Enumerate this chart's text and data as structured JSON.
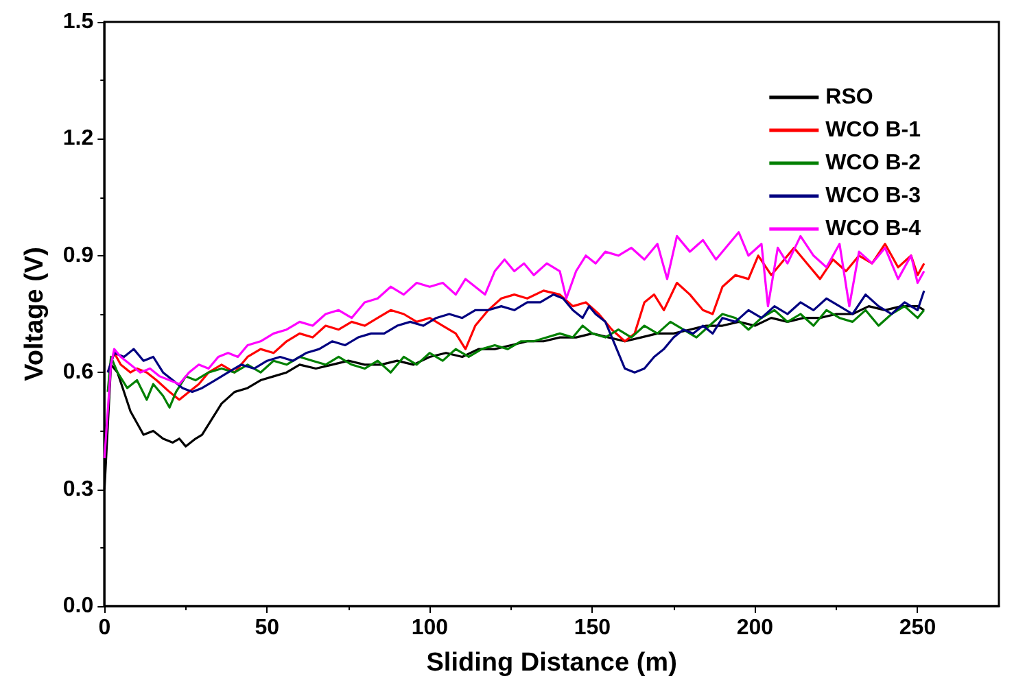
{
  "chart_data": {
    "type": "line",
    "xlabel": "Sliding Distance (m)",
    "ylabel": "Voltage (V)",
    "xlim": [
      0,
      275
    ],
    "xticks": [
      0,
      50,
      100,
      150,
      200,
      250
    ],
    "ylim": [
      0,
      1.5
    ],
    "yticks": [
      {
        "value": 0,
        "label": "0.0"
      },
      {
        "value": 0.3,
        "label": "0.3"
      },
      {
        "value": 0.6,
        "label": "0.6"
      },
      {
        "value": 0.9,
        "label": "0.9"
      },
      {
        "value": 1.2,
        "label": "1.2"
      },
      {
        "value": 1.5,
        "label": "1.5"
      }
    ],
    "grid": false,
    "legend": "top right",
    "marker": "none",
    "line_style": "solid",
    "series": [
      {
        "name": "RSO",
        "color": "#000000",
        "x": [
          0,
          2,
          4,
          6,
          8,
          10,
          12,
          15,
          18,
          21,
          23,
          25,
          28,
          30,
          33,
          36,
          40,
          44,
          48,
          52,
          56,
          60,
          65,
          70,
          75,
          80,
          85,
          90,
          95,
          100,
          105,
          110,
          115,
          120,
          125,
          130,
          135,
          140,
          145,
          150,
          155,
          160,
          165,
          170,
          175,
          180,
          185,
          190,
          195,
          200,
          205,
          210,
          215,
          220,
          225,
          230,
          235,
          240,
          245,
          250,
          252
        ],
        "values": [
          0.3,
          0.62,
          0.6,
          0.55,
          0.5,
          0.47,
          0.44,
          0.45,
          0.43,
          0.42,
          0.43,
          0.41,
          0.43,
          0.44,
          0.48,
          0.52,
          0.55,
          0.56,
          0.58,
          0.59,
          0.6,
          0.62,
          0.61,
          0.62,
          0.63,
          0.62,
          0.62,
          0.63,
          0.62,
          0.64,
          0.65,
          0.64,
          0.66,
          0.66,
          0.67,
          0.68,
          0.68,
          0.69,
          0.69,
          0.7,
          0.69,
          0.68,
          0.69,
          0.7,
          0.7,
          0.71,
          0.72,
          0.72,
          0.73,
          0.72,
          0.74,
          0.73,
          0.74,
          0.74,
          0.75,
          0.75,
          0.77,
          0.76,
          0.77,
          0.77,
          0.76
        ]
      },
      {
        "name": "WCO B-1",
        "color": "#ff0000",
        "x": [
          1,
          3,
          5,
          8,
          10,
          13,
          16,
          20,
          23,
          26,
          29,
          32,
          36,
          40,
          44,
          48,
          52,
          56,
          60,
          64,
          68,
          72,
          76,
          80,
          84,
          88,
          92,
          96,
          100,
          104,
          108,
          111,
          114,
          118,
          122,
          126,
          130,
          135,
          140,
          144,
          148,
          152,
          156,
          160,
          163,
          166,
          169,
          172,
          176,
          180,
          184,
          187,
          190,
          194,
          198,
          201,
          205,
          208,
          212,
          216,
          220,
          224,
          228,
          232,
          236,
          240,
          244,
          248,
          250,
          252
        ],
        "values": [
          0.6,
          0.65,
          0.62,
          0.6,
          0.61,
          0.6,
          0.58,
          0.55,
          0.53,
          0.55,
          0.57,
          0.6,
          0.62,
          0.6,
          0.64,
          0.66,
          0.65,
          0.68,
          0.7,
          0.69,
          0.72,
          0.71,
          0.73,
          0.72,
          0.74,
          0.76,
          0.75,
          0.73,
          0.74,
          0.72,
          0.7,
          0.66,
          0.72,
          0.76,
          0.79,
          0.8,
          0.79,
          0.81,
          0.8,
          0.77,
          0.78,
          0.75,
          0.71,
          0.68,
          0.7,
          0.78,
          0.8,
          0.76,
          0.83,
          0.8,
          0.76,
          0.75,
          0.82,
          0.85,
          0.84,
          0.9,
          0.85,
          0.88,
          0.92,
          0.88,
          0.84,
          0.89,
          0.86,
          0.9,
          0.88,
          0.93,
          0.87,
          0.9,
          0.85,
          0.88
        ]
      },
      {
        "name": "WCO B-2",
        "color": "#008000",
        "x": [
          1,
          2,
          4,
          7,
          10,
          13,
          15,
          18,
          20,
          22,
          25,
          28,
          32,
          36,
          40,
          44,
          48,
          52,
          56,
          60,
          64,
          68,
          72,
          76,
          80,
          84,
          88,
          92,
          96,
          100,
          104,
          108,
          112,
          116,
          120,
          124,
          128,
          132,
          136,
          140,
          144,
          147,
          150,
          154,
          158,
          162,
          166,
          170,
          174,
          178,
          182,
          186,
          190,
          194,
          198,
          202,
          206,
          210,
          214,
          218,
          222,
          226,
          230,
          234,
          238,
          242,
          246,
          250,
          252
        ],
        "values": [
          0.55,
          0.64,
          0.6,
          0.56,
          0.58,
          0.53,
          0.57,
          0.54,
          0.51,
          0.55,
          0.59,
          0.58,
          0.6,
          0.61,
          0.6,
          0.62,
          0.6,
          0.63,
          0.62,
          0.64,
          0.63,
          0.62,
          0.64,
          0.62,
          0.61,
          0.63,
          0.6,
          0.64,
          0.62,
          0.65,
          0.63,
          0.66,
          0.64,
          0.66,
          0.67,
          0.66,
          0.68,
          0.68,
          0.69,
          0.7,
          0.69,
          0.72,
          0.7,
          0.69,
          0.71,
          0.69,
          0.72,
          0.7,
          0.73,
          0.71,
          0.69,
          0.72,
          0.75,
          0.74,
          0.71,
          0.74,
          0.76,
          0.73,
          0.75,
          0.72,
          0.76,
          0.74,
          0.73,
          0.76,
          0.72,
          0.75,
          0.77,
          0.74,
          0.76
        ]
      },
      {
        "name": "WCO B-3",
        "color": "#000080",
        "x": [
          1,
          3,
          6,
          9,
          12,
          15,
          18,
          21,
          24,
          27,
          30,
          34,
          38,
          42,
          46,
          50,
          54,
          58,
          62,
          66,
          70,
          74,
          78,
          82,
          86,
          90,
          94,
          98,
          102,
          106,
          110,
          114,
          118,
          122,
          126,
          130,
          134,
          138,
          141,
          144,
          147,
          149,
          151,
          154,
          157,
          160,
          163,
          166,
          169,
          172,
          175,
          178,
          181,
          184,
          187,
          190,
          194,
          198,
          202,
          206,
          210,
          214,
          218,
          222,
          226,
          230,
          234,
          238,
          242,
          246,
          250,
          252
        ],
        "values": [
          0.6,
          0.65,
          0.64,
          0.66,
          0.63,
          0.64,
          0.6,
          0.58,
          0.56,
          0.55,
          0.56,
          0.58,
          0.6,
          0.62,
          0.61,
          0.63,
          0.64,
          0.63,
          0.65,
          0.66,
          0.68,
          0.67,
          0.69,
          0.7,
          0.7,
          0.72,
          0.73,
          0.72,
          0.74,
          0.75,
          0.74,
          0.76,
          0.76,
          0.77,
          0.76,
          0.78,
          0.78,
          0.8,
          0.79,
          0.76,
          0.74,
          0.77,
          0.75,
          0.73,
          0.67,
          0.61,
          0.6,
          0.61,
          0.64,
          0.66,
          0.69,
          0.71,
          0.7,
          0.72,
          0.7,
          0.74,
          0.73,
          0.76,
          0.74,
          0.77,
          0.75,
          0.78,
          0.76,
          0.79,
          0.77,
          0.75,
          0.8,
          0.77,
          0.75,
          0.78,
          0.76,
          0.81
        ]
      },
      {
        "name": "WCO B-4",
        "color": "#ff00ff",
        "x": [
          0,
          2,
          3,
          5,
          8,
          11,
          14,
          17,
          20,
          23,
          26,
          29,
          32,
          35,
          38,
          41,
          44,
          48,
          52,
          56,
          60,
          64,
          68,
          72,
          76,
          80,
          84,
          88,
          92,
          96,
          100,
          104,
          108,
          111,
          114,
          117,
          120,
          123,
          126,
          129,
          132,
          136,
          140,
          142,
          145,
          148,
          151,
          154,
          158,
          162,
          166,
          170,
          173,
          176,
          180,
          184,
          188,
          192,
          195,
          198,
          202,
          204,
          207,
          210,
          214,
          218,
          222,
          226,
          229,
          232,
          236,
          240,
          244,
          248,
          250,
          252
        ],
        "values": [
          0.38,
          0.62,
          0.66,
          0.64,
          0.62,
          0.6,
          0.61,
          0.59,
          0.58,
          0.57,
          0.6,
          0.62,
          0.61,
          0.64,
          0.65,
          0.64,
          0.67,
          0.68,
          0.7,
          0.71,
          0.73,
          0.72,
          0.75,
          0.76,
          0.74,
          0.78,
          0.79,
          0.82,
          0.8,
          0.83,
          0.82,
          0.83,
          0.8,
          0.84,
          0.82,
          0.8,
          0.86,
          0.89,
          0.86,
          0.88,
          0.85,
          0.88,
          0.86,
          0.79,
          0.86,
          0.9,
          0.88,
          0.91,
          0.9,
          0.92,
          0.89,
          0.93,
          0.84,
          0.95,
          0.91,
          0.94,
          0.89,
          0.93,
          0.96,
          0.9,
          0.93,
          0.77,
          0.92,
          0.88,
          0.95,
          0.9,
          0.87,
          0.93,
          0.77,
          0.91,
          0.88,
          0.92,
          0.84,
          0.9,
          0.83,
          0.86
        ]
      }
    ]
  }
}
